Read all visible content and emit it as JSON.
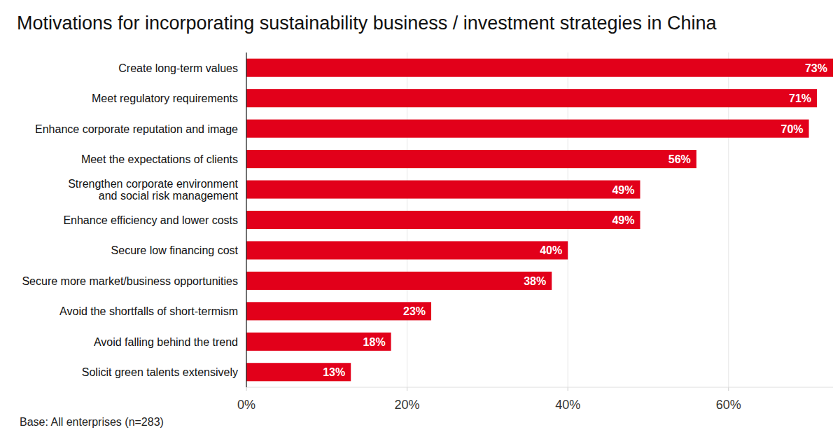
{
  "chart_data": {
    "type": "bar",
    "orientation": "horizontal",
    "title": "Motivations for incorporating sustainability business / investment strategies in China",
    "caption": "Base: All enterprises (n=283)",
    "categories": [
      "Create long-term values",
      "Meet regulatory requirements",
      "Enhance corporate reputation and image",
      "Meet the expectations of clients",
      "Strengthen corporate environment\nand social risk management",
      "Enhance efficiency and lower costs",
      "Secure low financing cost",
      "Secure more market/business opportunities",
      "Avoid the shortfalls of short-termism",
      "Avoid falling behind the trend",
      "Solicit green talents extensively"
    ],
    "values": [
      73,
      71,
      70,
      56,
      49,
      49,
      40,
      38,
      23,
      18,
      13
    ],
    "value_labels": [
      "73%",
      "71%",
      "70%",
      "56%",
      "49%",
      "49%",
      "40%",
      "38%",
      "23%",
      "18%",
      "13%"
    ],
    "data_labels": true,
    "color": "#e2001a",
    "xlim": [
      0,
      73
    ],
    "xticks": [
      {
        "value": 0,
        "label": "0%"
      },
      {
        "value": 20,
        "label": "20%"
      },
      {
        "value": 40,
        "label": "40%"
      },
      {
        "value": 60,
        "label": "60%"
      }
    ],
    "grid": true
  }
}
